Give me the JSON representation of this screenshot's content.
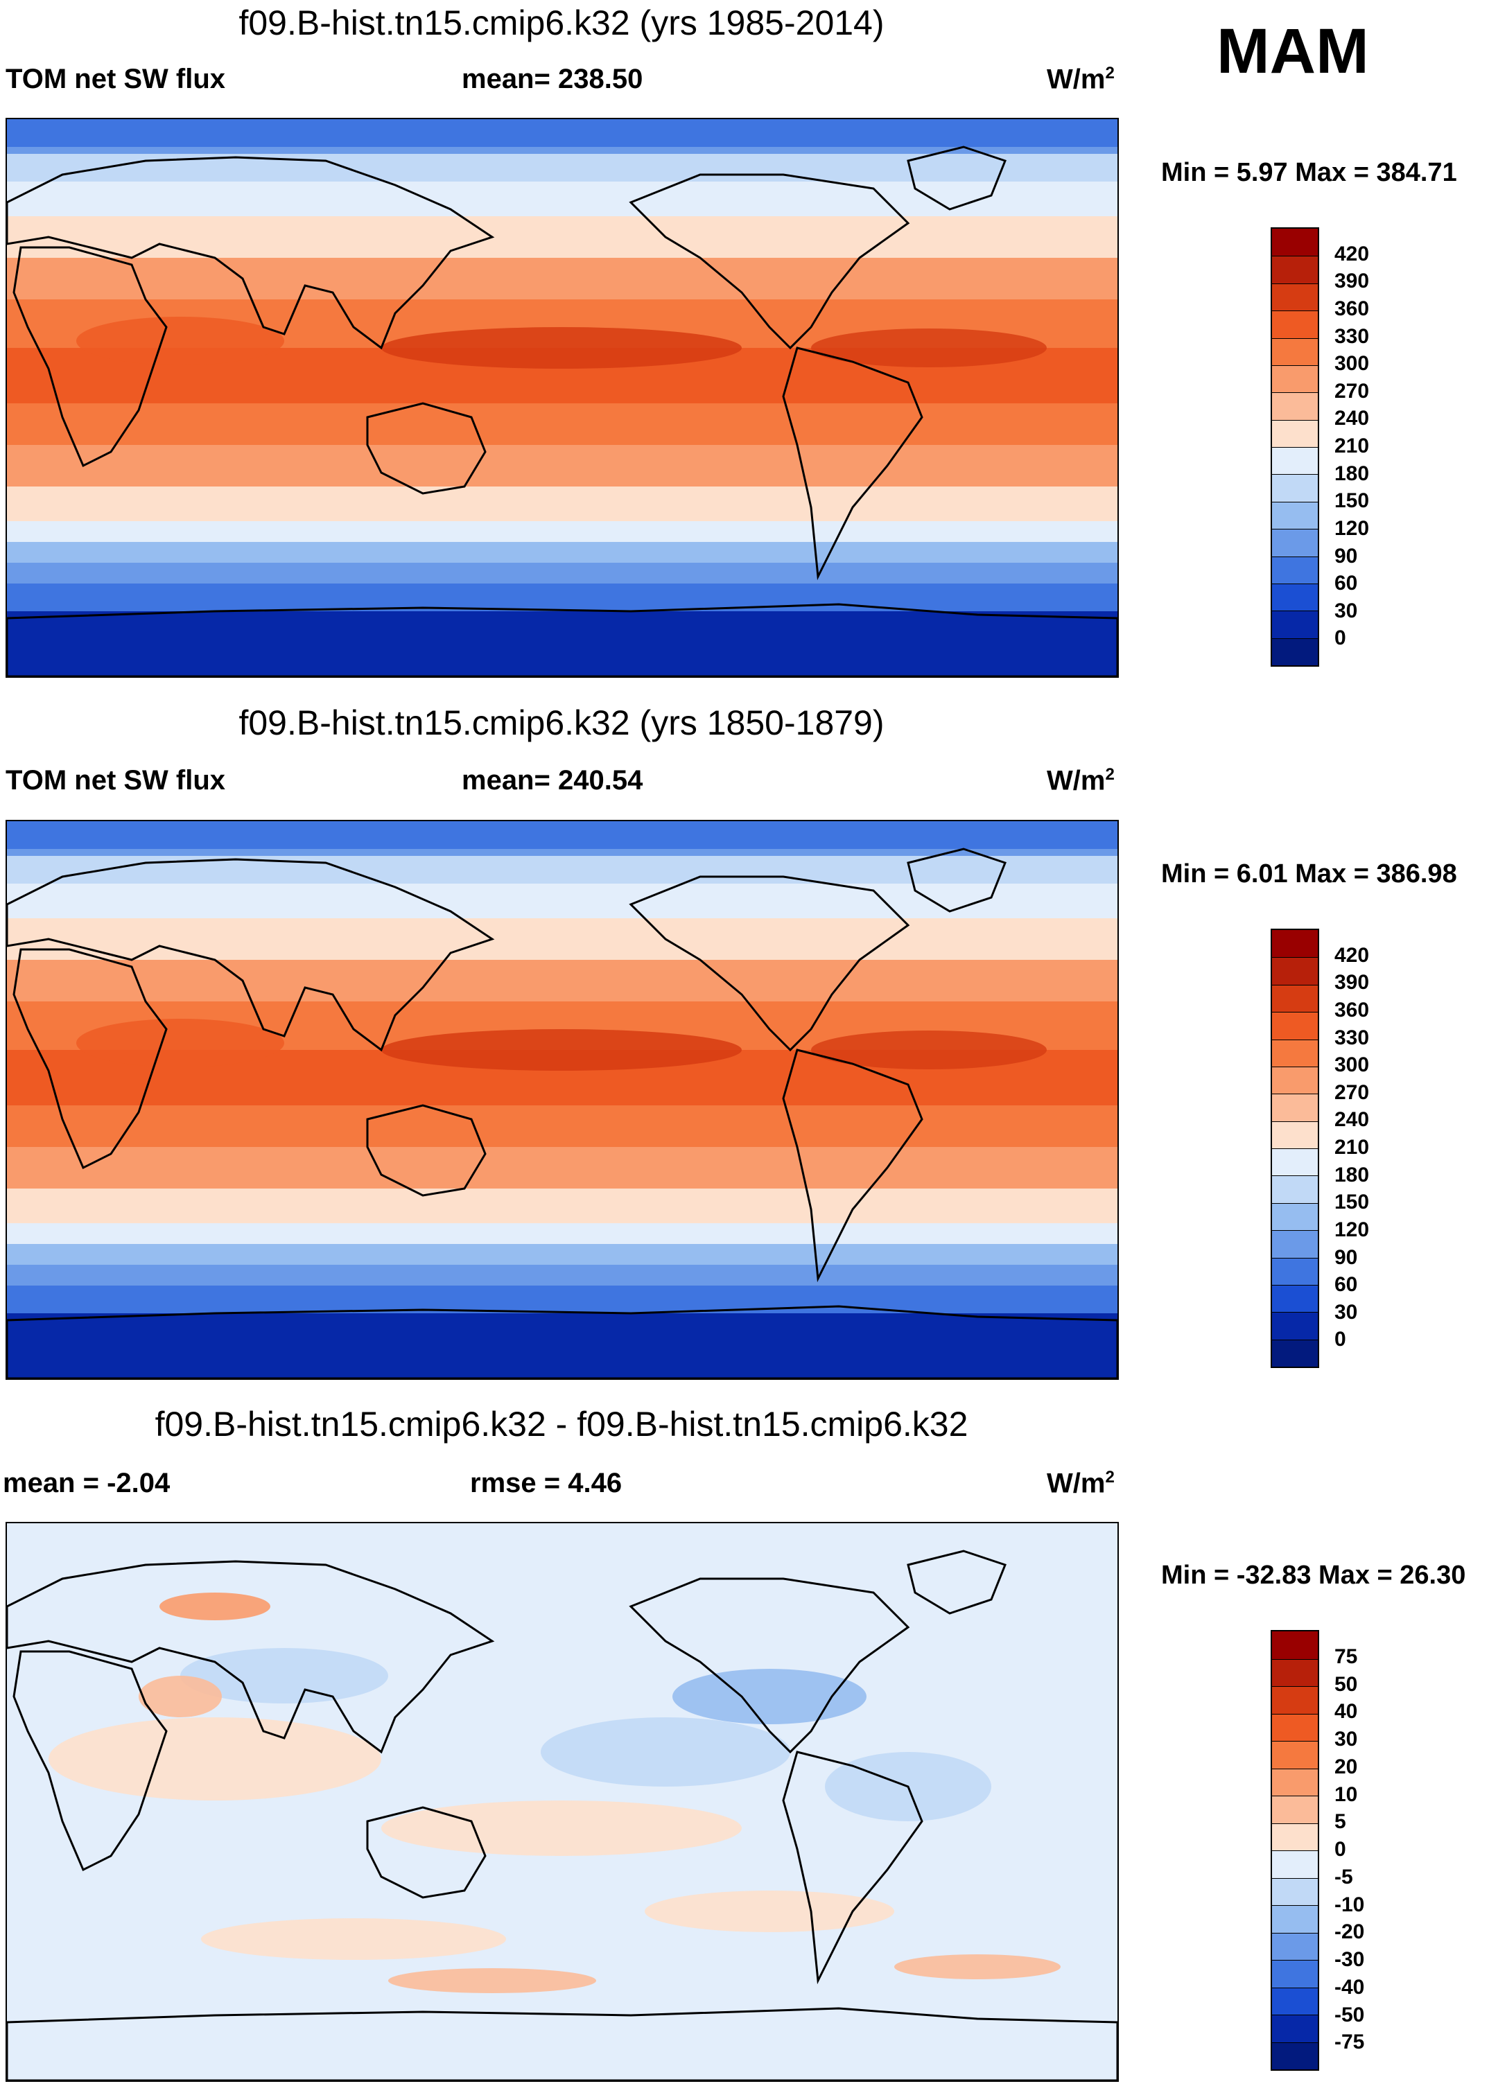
{
  "season": "MAM",
  "panels": [
    {
      "title": "f09.B-hist.tn15.cmip6.k32 (yrs 1985-2014)",
      "left_label": "TOM net SW flux",
      "center_label": "mean= 238.50",
      "units_base": "W/m",
      "units_exp": "2",
      "minmax_label": "Min =   5.97 Max = 384.71",
      "field": "absolute",
      "colorbar": {
        "labels": [
          "420",
          "390",
          "360",
          "330",
          "300",
          "270",
          "240",
          "210",
          "180",
          "150",
          "120",
          "90",
          "60",
          "30",
          "0"
        ],
        "colors": [
          "#990000",
          "#b7200a",
          "#d63c12",
          "#ee5a23",
          "#f5793f",
          "#f99b6c",
          "#fbbb99",
          "#fde0cc",
          "#e3eefb",
          "#c1d9f6",
          "#96bdf0",
          "#6b9ae8",
          "#3f75e0",
          "#1b4fd3",
          "#0628a8",
          "#021a7e"
        ]
      }
    },
    {
      "title": "f09.B-hist.tn15.cmip6.k32 (yrs 1850-1879)",
      "left_label": "TOM net SW flux",
      "center_label": "mean= 240.54",
      "units_base": "W/m",
      "units_exp": "2",
      "minmax_label": "Min =   6.01 Max = 386.98",
      "field": "absolute",
      "colorbar": {
        "labels": [
          "420",
          "390",
          "360",
          "330",
          "300",
          "270",
          "240",
          "210",
          "180",
          "150",
          "120",
          "90",
          "60",
          "30",
          "0"
        ],
        "colors": [
          "#990000",
          "#b7200a",
          "#d63c12",
          "#ee5a23",
          "#f5793f",
          "#f99b6c",
          "#fbbb99",
          "#fde0cc",
          "#e3eefb",
          "#c1d9f6",
          "#96bdf0",
          "#6b9ae8",
          "#3f75e0",
          "#1b4fd3",
          "#0628a8",
          "#021a7e"
        ]
      }
    },
    {
      "title": "f09.B-hist.tn15.cmip6.k32 - f09.B-hist.tn15.cmip6.k32",
      "left_label": "mean =  -2.04",
      "center_label": "rmse =   4.46",
      "units_base": "W/m",
      "units_exp": "2",
      "minmax_label": "Min = -32.83 Max =  26.30",
      "field": "difference",
      "colorbar": {
        "labels": [
          "75",
          "50",
          "40",
          "30",
          "20",
          "10",
          "5",
          "0",
          "-5",
          "-10",
          "-20",
          "-30",
          "-40",
          "-50",
          "-75"
        ],
        "colors": [
          "#990000",
          "#b7200a",
          "#d63c12",
          "#ee5a23",
          "#f5793f",
          "#f99b6c",
          "#fbbb99",
          "#fde0cc",
          "#e3eefb",
          "#c1d9f6",
          "#96bdf0",
          "#6b9ae8",
          "#3f75e0",
          "#1b4fd3",
          "#0628a8",
          "#021a7e"
        ]
      }
    }
  ]
}
